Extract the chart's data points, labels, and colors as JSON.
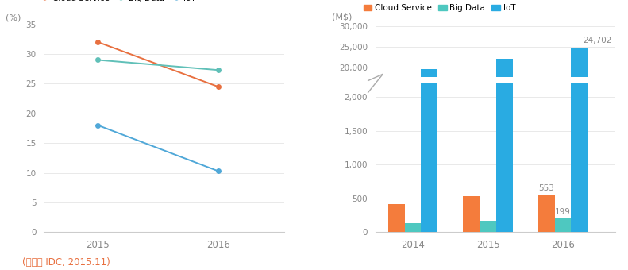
{
  "line_years": [
    2015,
    2016
  ],
  "cloud_service_pct": [
    32.0,
    24.5
  ],
  "big_data_pct": [
    29.0,
    27.3
  ],
  "iot_pct": [
    18.0,
    10.3
  ],
  "line_ylim": [
    0,
    35
  ],
  "line_yticks": [
    0,
    5,
    10,
    15,
    20,
    25,
    30,
    35
  ],
  "line_ylabel": "(%)",
  "bar_years": [
    "2014",
    "2015",
    "2016"
  ],
  "cloud_service_ms": [
    420,
    530,
    553
  ],
  "big_data_ms": [
    130,
    165,
    199
  ],
  "iot_ms": [
    19500,
    22000,
    24702
  ],
  "bar_ylabel": "(M$)",
  "bar_yticks_lower": [
    0,
    500,
    1000,
    1500,
    2000
  ],
  "bar_yticks_upper": [
    20000,
    25000,
    30000
  ],
  "bar_ytick_labels_lower": [
    "0",
    "500",
    "1,000",
    "1,500",
    "2,000"
  ],
  "bar_ytick_labels_upper": [
    "20,000",
    "25,000",
    "30,000"
  ],
  "color_cloud": "#f47c3c",
  "color_bigdata": "#4ec8c0",
  "color_iot": "#29abe2",
  "color_line_cloud": "#e87040",
  "color_line_bigdata": "#60c0b8",
  "color_line_iot": "#50a8d8",
  "source_text": "(출처： IDC, 2015.11)",
  "label_553": "553",
  "label_199": "199",
  "label_24702": "24,702",
  "bar_width": 0.22
}
